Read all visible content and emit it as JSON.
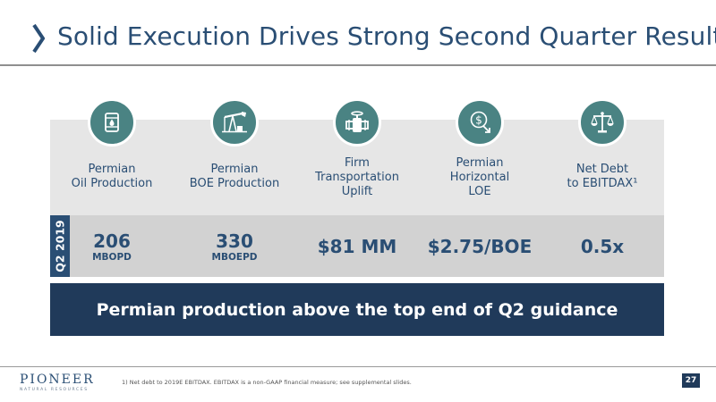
{
  "slide": {
    "title": "Solid Execution Drives Strong Second Quarter Results",
    "period_label": "Q2 2019",
    "banner": "Permian production above the top end of Q2 guidance",
    "footnote": "1) Net debt to 2019E EBITDAX.  EBITDAX is a non-GAAP financial measure; see supplemental slides.",
    "page_number": "27"
  },
  "logo": {
    "name": "PIONEER",
    "sub": "NATURAL RESOURCES"
  },
  "cards": [
    {
      "icon": "oil-barrel-icon",
      "label_lines": [
        "Permian",
        "Oil Production"
      ],
      "value": "206",
      "unit": "MBOPD"
    },
    {
      "icon": "pump-jack-icon",
      "label_lines": [
        "Permian",
        "BOE Production"
      ],
      "value": "330",
      "unit": "MBOEPD"
    },
    {
      "icon": "pipeline-valve-icon",
      "label_lines": [
        "Firm",
        "Transportation",
        "Uplift"
      ],
      "value": "$81 MM",
      "unit": ""
    },
    {
      "icon": "cost-down-icon",
      "label_lines": [
        "Permian",
        "Horizontal",
        "LOE"
      ],
      "value": "$2.75/BOE",
      "unit": ""
    },
    {
      "icon": "balance-scale-icon",
      "label_lines": [
        "Net Debt",
        "to EBITDAX¹"
      ],
      "value": "0.5x",
      "unit": ""
    }
  ],
  "colors": {
    "title_navy": "#2a4e74",
    "banner_navy": "#203a5a",
    "icon_teal": "#4a8383",
    "card_light": "#e6e6e6",
    "card_dark": "#d2d2d2"
  }
}
